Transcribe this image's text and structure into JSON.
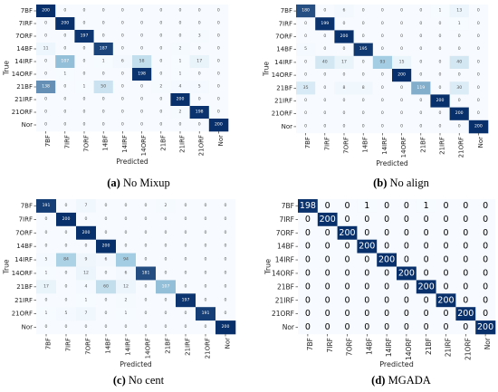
{
  "figure": {
    "captions": [
      {
        "letter": "(a)",
        "text": "No Mixup"
      },
      {
        "letter": "(b)",
        "text": "No align"
      },
      {
        "letter": "(c)",
        "text": "No cent"
      },
      {
        "letter": "(d)",
        "text": "MGADA"
      }
    ]
  },
  "colors": {
    "low": "#f7fbff",
    "mid": "#9ecae1",
    "high": "#08306b",
    "axis": "#222222"
  },
  "chart_data": [
    {
      "type": "heatmap",
      "title": "",
      "xlabel": "Predicted",
      "ylabel": "True",
      "labels": [
        "7BF",
        "7IRF",
        "7ORF",
        "14BF",
        "14IRF",
        "14ORF",
        "21BF",
        "21IRF",
        "21ORF",
        "Nor"
      ],
      "vmin": 0,
      "vmax": 200,
      "matrix": [
        [
          200,
          0,
          0,
          0,
          0,
          0,
          0,
          0,
          0,
          0
        ],
        [
          0,
          200,
          0,
          0,
          0,
          0,
          0,
          0,
          0,
          0
        ],
        [
          0,
          0,
          197,
          0,
          0,
          0,
          0,
          0,
          3,
          0
        ],
        [
          11,
          0,
          0,
          187,
          0,
          0,
          0,
          2,
          0,
          0
        ],
        [
          0,
          107,
          0,
          1,
          6,
          58,
          0,
          1,
          17,
          0
        ],
        [
          0,
          1,
          0,
          0,
          0,
          198,
          0,
          1,
          0,
          0
        ],
        [
          138,
          0,
          1,
          50,
          0,
          0,
          2,
          4,
          5,
          0
        ],
        [
          0,
          0,
          0,
          0,
          0,
          0,
          0,
          200,
          0,
          0
        ],
        [
          0,
          0,
          0,
          0,
          0,
          0,
          0,
          2,
          198,
          0
        ],
        [
          0,
          0,
          0,
          0,
          0,
          0,
          0,
          0,
          0,
          200
        ]
      ]
    },
    {
      "type": "heatmap",
      "title": "",
      "xlabel": "Predicted",
      "ylabel": "True",
      "labels": [
        "7BF",
        "7IRF",
        "7ORF",
        "14BF",
        "14IRF",
        "14ORF",
        "21BF",
        "21IRF",
        "21ORF",
        "Nor"
      ],
      "vmin": 0,
      "vmax": 200,
      "matrix": [
        [
          180,
          0,
          6,
          0,
          0,
          0,
          0,
          1,
          13,
          0
        ],
        [
          0,
          199,
          0,
          0,
          0,
          0,
          0,
          0,
          1,
          0
        ],
        [
          0,
          0,
          200,
          0,
          0,
          0,
          0,
          0,
          0,
          0
        ],
        [
          5,
          0,
          0,
          195,
          0,
          0,
          0,
          0,
          0,
          0
        ],
        [
          0,
          40,
          17,
          0,
          93,
          15,
          0,
          0,
          40,
          0
        ],
        [
          0,
          0,
          0,
          0,
          0,
          200,
          0,
          0,
          0,
          0
        ],
        [
          35,
          0,
          8,
          8,
          0,
          0,
          119,
          0,
          30,
          0
        ],
        [
          0,
          0,
          0,
          0,
          0,
          0,
          0,
          200,
          0,
          0
        ],
        [
          0,
          0,
          0,
          0,
          0,
          0,
          0,
          0,
          200,
          0
        ],
        [
          0,
          0,
          0,
          0,
          0,
          0,
          0,
          0,
          0,
          200
        ]
      ]
    },
    {
      "type": "heatmap",
      "title": "",
      "xlabel": "Predicted",
      "ylabel": "True",
      "labels": [
        "7BF",
        "7IRF",
        "7ORF",
        "14BF",
        "14IRF",
        "14ORF",
        "21BF",
        "21IRF",
        "21ORF",
        "Nor"
      ],
      "vmin": 0,
      "vmax": 200,
      "matrix": [
        [
          191,
          0,
          7,
          0,
          0,
          0,
          2,
          0,
          0,
          0
        ],
        [
          0,
          200,
          0,
          0,
          0,
          0,
          0,
          0,
          0,
          0
        ],
        [
          0,
          0,
          200,
          0,
          0,
          0,
          0,
          0,
          0,
          0
        ],
        [
          0,
          0,
          0,
          200,
          0,
          0,
          0,
          0,
          0,
          0
        ],
        [
          5,
          84,
          9,
          6,
          94,
          0,
          0,
          0,
          0,
          0
        ],
        [
          1,
          0,
          12,
          0,
          6,
          181,
          0,
          0,
          0,
          0
        ],
        [
          17,
          0,
          4,
          60,
          12,
          0,
          107,
          0,
          0,
          0
        ],
        [
          0,
          0,
          1,
          0,
          2,
          0,
          0,
          197,
          0,
          0
        ],
        [
          1,
          5,
          7,
          0,
          1,
          0,
          0,
          0,
          191,
          0
        ],
        [
          0,
          0,
          0,
          0,
          0,
          0,
          0,
          0,
          0,
          200
        ]
      ]
    },
    {
      "type": "heatmap",
      "title": "",
      "xlabel": "Predicted",
      "ylabel": "True",
      "labels": [
        "7BF",
        "7IRF",
        "7ORF",
        "14BF",
        "14IRF",
        "14ORF",
        "21BF",
        "21IRF",
        "21ORF",
        "Nor"
      ],
      "vmin": 0,
      "vmax": 200,
      "matrix": [
        [
          198,
          0,
          0,
          1,
          0,
          0,
          1,
          0,
          0,
          0
        ],
        [
          0,
          200,
          0,
          0,
          0,
          0,
          0,
          0,
          0,
          0
        ],
        [
          0,
          0,
          200,
          0,
          0,
          0,
          0,
          0,
          0,
          0
        ],
        [
          0,
          0,
          0,
          200,
          0,
          0,
          0,
          0,
          0,
          0
        ],
        [
          0,
          0,
          0,
          0,
          200,
          0,
          0,
          0,
          0,
          0
        ],
        [
          0,
          0,
          0,
          0,
          0,
          200,
          0,
          0,
          0,
          0
        ],
        [
          0,
          0,
          0,
          0,
          0,
          0,
          200,
          0,
          0,
          0
        ],
        [
          0,
          0,
          0,
          0,
          0,
          0,
          0,
          200,
          0,
          0
        ],
        [
          0,
          0,
          0,
          0,
          0,
          0,
          0,
          0,
          200,
          0
        ],
        [
          0,
          0,
          0,
          0,
          0,
          0,
          0,
          0,
          0,
          200
        ]
      ]
    }
  ]
}
